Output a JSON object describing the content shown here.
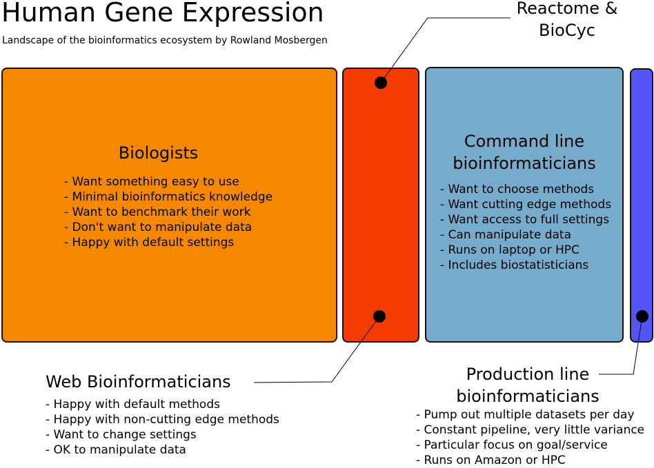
{
  "title": "Human Gene Expression",
  "subtitle": "Landscape of the bioinformatics ecosystem by Rowland Mosbergen",
  "colors": {
    "biologists": "#f68800",
    "reactome": "#f43b00",
    "command_line": "#77abcb",
    "production": "#5454f7"
  },
  "biologists": {
    "heading": "Biologists",
    "points": [
      "- Want something easy to use",
      "- Minimal bioinformatics knowledge",
      "- Want to benchmark their work",
      "- Don't want to manipulate data",
      "- Happy with default settings"
    ]
  },
  "reactome": {
    "line1": "Reactome &",
    "line2": "BioCyc"
  },
  "command_line": {
    "line1": "Command line",
    "line2": "bioinformaticians",
    "points": [
      "- Want to choose methods",
      "- Want cutting edge methods",
      "- Want access to full settings",
      "- Can manipulate data",
      "- Runs on laptop or HPC",
      "- Includes biostatisticians"
    ]
  },
  "web": {
    "heading": "Web Bioinformaticians",
    "points": [
      "- Happy with default methods",
      "- Happy with non-cutting edge methods",
      "- Want to change settings",
      "- OK to manipulate data"
    ]
  },
  "production": {
    "line1": "Production line",
    "line2": "bioinformaticians",
    "points": [
      "- Pump out multiple datasets per day",
      "- Constant pipeline, very little variance",
      "- Particular focus on goal/service",
      "- Runs on Amazon or HPC"
    ]
  }
}
